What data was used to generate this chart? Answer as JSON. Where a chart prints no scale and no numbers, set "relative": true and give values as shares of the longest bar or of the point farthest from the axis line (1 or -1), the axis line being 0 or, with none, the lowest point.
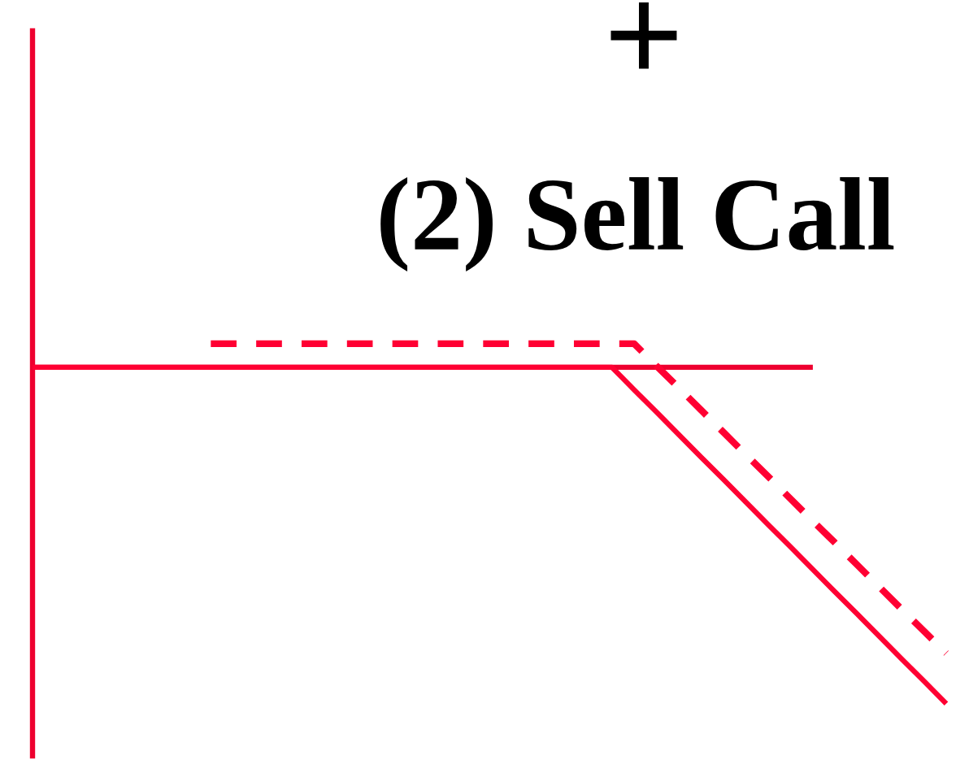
{
  "chart_data": {
    "type": "line",
    "title": "(2) Sell Call",
    "annotations": [
      "+"
    ],
    "relative": true,
    "categories": [
      null,
      null,
      null,
      null,
      null,
      null,
      null,
      null,
      null,
      null,
      null,
      null,
      null,
      null,
      null,
      null,
      null,
      null,
      null,
      null,
      null,
      null,
      null,
      null,
      null,
      null,
      null,
      null,
      null,
      null,
      null,
      null,
      null,
      null,
      null,
      null,
      null,
      null,
      null,
      null,
      null,
      null
    ],
    "series": [
      {
        "color": "#ff0033",
        "line_style": "solid",
        "values": [
          0,
          0,
          0,
          0,
          0,
          0,
          0,
          0,
          0,
          0,
          0,
          0,
          0,
          0,
          0,
          0,
          0,
          0,
          0,
          0,
          0,
          0,
          0,
          0,
          0,
          0,
          0,
          -0.067,
          -0.133,
          -0.2,
          -0.267,
          -0.333,
          -0.4,
          -0.467,
          -0.533,
          -0.6,
          -0.667,
          -0.733,
          -0.8,
          -0.867,
          -0.933,
          -1
        ]
      },
      {
        "color": "#ff0033",
        "line_style": "dashed",
        "values": [
          null,
          null,
          null,
          null,
          null,
          null,
          null,
          null,
          0.07,
          0.07,
          0.07,
          0.07,
          0.07,
          0.07,
          0.07,
          0.07,
          0.07,
          0.07,
          0.07,
          0.07,
          0.07,
          0.07,
          0.07,
          0.07,
          0.07,
          0.07,
          0.07,
          0.07,
          0.004,
          -0.061,
          -0.127,
          -0.193,
          -0.259,
          -0.324,
          -0.39,
          -0.456,
          -0.521,
          -0.587,
          -0.653,
          -0.719,
          -0.784,
          -0.85
        ]
      }
    ],
    "ref_lines": [
      {
        "axis": "y",
        "value": 0,
        "color": "#ee002f"
      }
    ]
  }
}
